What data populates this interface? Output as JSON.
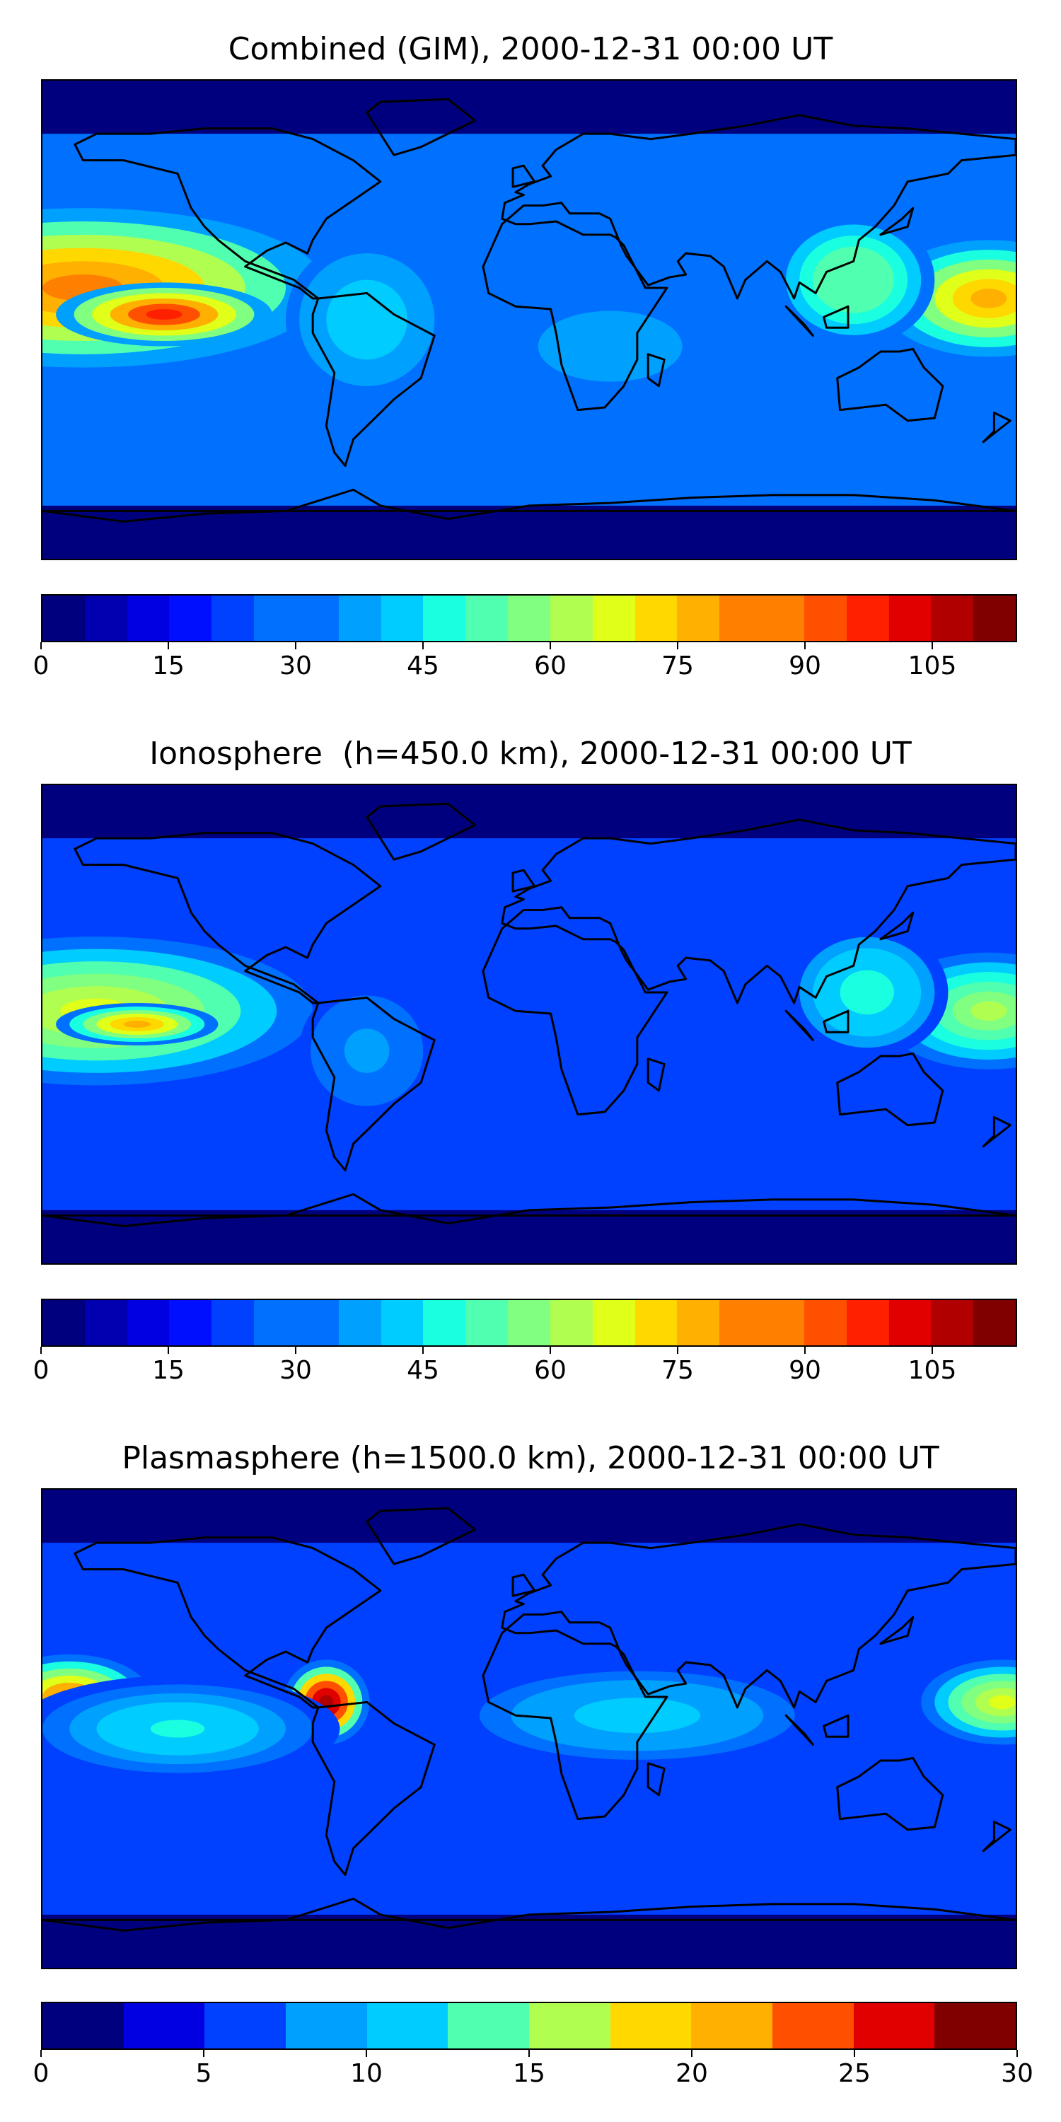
{
  "panels": [
    {
      "title": "Combined (GIM), 2000-12-31 00:00 UT",
      "colorbar_ticks": [
        "0",
        "15",
        "30",
        "45",
        "60",
        "75",
        "90",
        "105"
      ],
      "scale_min": 0,
      "scale_max": 115,
      "levels": 23,
      "blobs": [
        {
          "lon": -165,
          "lat": 12,
          "rx": 90,
          "ry": 30,
          "value": 85
        },
        {
          "lon": -135,
          "lat": 2,
          "rx": 40,
          "ry": 12,
          "value": 97
        },
        {
          "lon": 170,
          "lat": 8,
          "rx": 40,
          "ry": 22,
          "value": 78
        },
        {
          "lon": -60,
          "lat": 0,
          "rx": 30,
          "ry": 30,
          "value": 42
        },
        {
          "lon": 120,
          "lat": 15,
          "rx": 30,
          "ry": 25,
          "value": 55
        },
        {
          "lon": 30,
          "lat": -10,
          "rx": 40,
          "ry": 20,
          "value": 35
        }
      ],
      "base_value": 30
    },
    {
      "title": "Ionosphere  (h=450.0 km), 2000-12-31 00:00 UT",
      "colorbar_ticks": [
        "0",
        "15",
        "30",
        "45",
        "60",
        "75",
        "90",
        "105"
      ],
      "scale_min": 0,
      "scale_max": 115,
      "levels": 23,
      "blobs": [
        {
          "lon": -160,
          "lat": 5,
          "rx": 80,
          "ry": 28,
          "value": 70
        },
        {
          "lon": -145,
          "lat": 0,
          "rx": 30,
          "ry": 8,
          "value": 78
        },
        {
          "lon": 170,
          "lat": 5,
          "rx": 40,
          "ry": 22,
          "value": 62
        },
        {
          "lon": 125,
          "lat": 12,
          "rx": 30,
          "ry": 25,
          "value": 48
        },
        {
          "lon": -60,
          "lat": -10,
          "rx": 25,
          "ry": 25,
          "value": 35
        }
      ],
      "base_value": 25
    },
    {
      "title": "Plasmasphere (h=1500.0 km), 2000-12-31 00:00 UT",
      "colorbar_ticks": [
        "0",
        "5",
        "10",
        "15",
        "20",
        "25",
        "30"
      ],
      "scale_min": 0,
      "scale_max": 30,
      "levels": 12,
      "blobs": [
        {
          "lon": -75,
          "lat": 10,
          "rx": 16,
          "ry": 16,
          "value": 28
        },
        {
          "lon": -170,
          "lat": 12,
          "rx": 30,
          "ry": 16,
          "value": 22
        },
        {
          "lon": 175,
          "lat": 10,
          "rx": 30,
          "ry": 16,
          "value": 18
        },
        {
          "lon": 40,
          "lat": 5,
          "rx": 70,
          "ry": 20,
          "value": 11
        },
        {
          "lon": -130,
          "lat": 0,
          "rx": 60,
          "ry": 20,
          "value": 12
        }
      ],
      "base_value": 6
    }
  ],
  "colormap": [
    "#00007f",
    "#0000b0",
    "#0000e0",
    "#0010ff",
    "#0040ff",
    "#0070ff",
    "#00a0ff",
    "#00ccff",
    "#19ffe0",
    "#50ffb0",
    "#80ff80",
    "#b0ff50",
    "#e0ff19",
    "#ffd800",
    "#ffb000",
    "#ff8000",
    "#ff5000",
    "#ff2000",
    "#e00000",
    "#b00000",
    "#800000"
  ],
  "coast_color": "#000000"
}
